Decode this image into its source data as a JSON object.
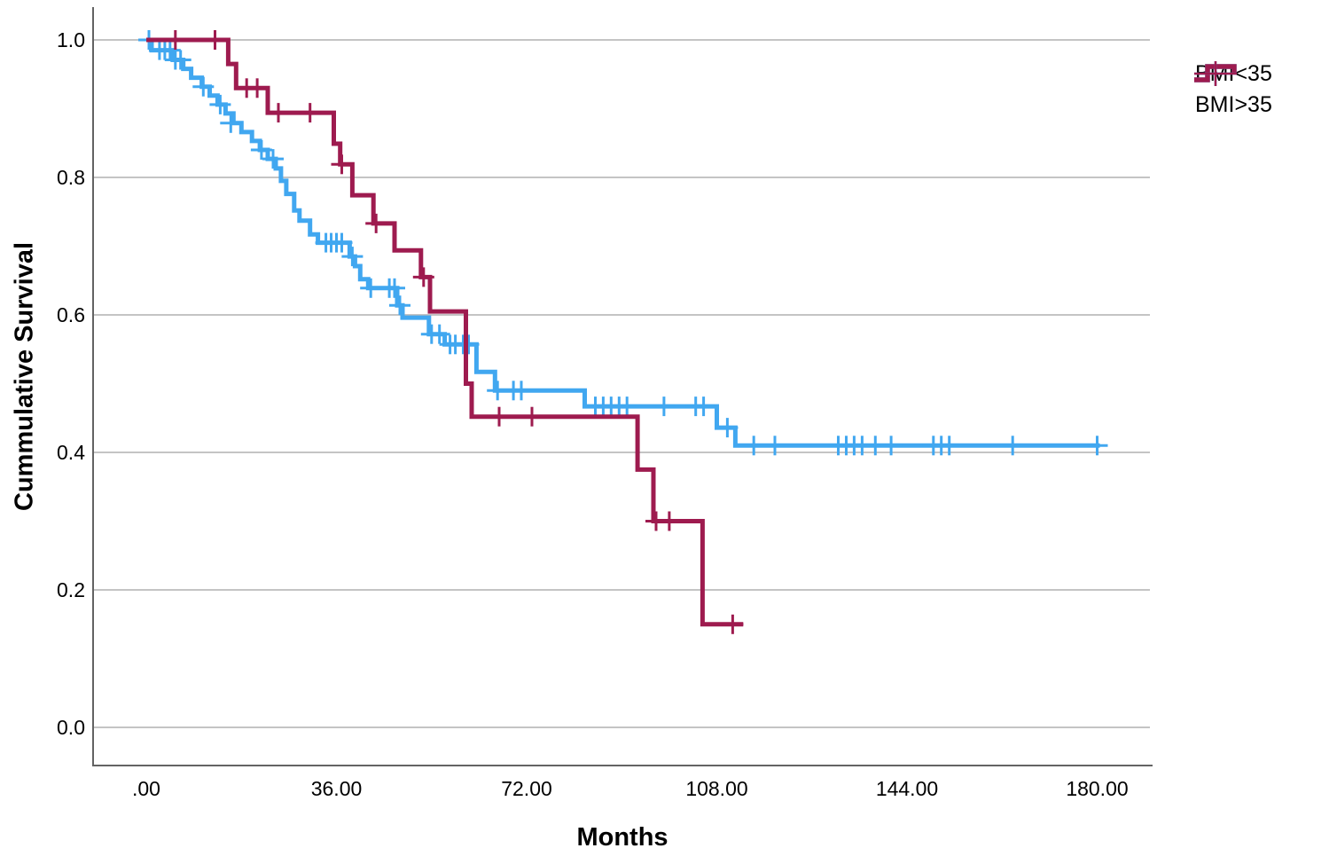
{
  "figure": {
    "background": "#ffffff",
    "plot": {
      "grid_color": "#b1b1b1",
      "axis_color": "#636363",
      "text_color": "#000000",
      "tick_font_size": 23
    }
  },
  "legend": {
    "items": [
      {
        "type": "line",
        "label": "BMI<35",
        "color": "#41a7f0"
      },
      {
        "type": "line",
        "label": "BMI>35",
        "color": "#9e1b4f"
      },
      {
        "type": "censor",
        "label": "",
        "color": "#41a7f0"
      },
      {
        "type": "censor",
        "label": "",
        "color": "#9e1b4f"
      }
    ]
  },
  "chart_data": {
    "type": "line",
    "subtype": "kaplan_meier_step",
    "title": "",
    "xlabel": "Months",
    "ylabel": "Cummulative Survival",
    "xlim": [
      -10,
      190
    ],
    "ylim": [
      -0.055,
      1.05
    ],
    "x_ticks": [
      0,
      36,
      72,
      108,
      144,
      180
    ],
    "x_tick_labels": [
      ".00",
      "36.00",
      "72.00",
      "108.00",
      "144.00",
      "180.00"
    ],
    "y_ticks": [
      1.0,
      0.8,
      0.6,
      0.4,
      0.2,
      0.0
    ],
    "y_tick_labels": [
      "1.0",
      "0.8",
      "0.6",
      "0.4",
      "0.2",
      "0.0"
    ],
    "grid": "horizontal",
    "legend_position": "top-right",
    "series": [
      {
        "name": "BMI<35",
        "color": "#41a7f0",
        "steps": [
          [
            0,
            1.0
          ],
          [
            1,
            0.985
          ],
          [
            5,
            0.971
          ],
          [
            7,
            0.958
          ],
          [
            8.5,
            0.945
          ],
          [
            10.5,
            0.932
          ],
          [
            12,
            0.919
          ],
          [
            13.5,
            0.906
          ],
          [
            15,
            0.893
          ],
          [
            16.5,
            0.879
          ],
          [
            18,
            0.866
          ],
          [
            20,
            0.853
          ],
          [
            21.5,
            0.84
          ],
          [
            23,
            0.827
          ],
          [
            24.5,
            0.813
          ],
          [
            25.5,
            0.795
          ],
          [
            26.5,
            0.776
          ],
          [
            28,
            0.752
          ],
          [
            29,
            0.737
          ],
          [
            31,
            0.717
          ],
          [
            32.5,
            0.705
          ],
          [
            38.5,
            0.685
          ],
          [
            39.5,
            0.671
          ],
          [
            40.5,
            0.652
          ],
          [
            42,
            0.639
          ],
          [
            47.5,
            0.614
          ],
          [
            48.5,
            0.596
          ],
          [
            53.5,
            0.572
          ],
          [
            56.5,
            0.557
          ],
          [
            62.5,
            0.517
          ],
          [
            66,
            0.49
          ],
          [
            83,
            0.467
          ],
          [
            108,
            0.436
          ],
          [
            111.5,
            0.41
          ],
          [
            180.5,
            0.41
          ]
        ],
        "censors": [
          [
            0.5,
            1.0
          ],
          [
            2.5,
            0.985
          ],
          [
            3.5,
            0.985
          ],
          [
            4.5,
            0.985
          ],
          [
            5.5,
            0.971
          ],
          [
            6.5,
            0.971
          ],
          [
            10.8,
            0.932
          ],
          [
            14,
            0.906
          ],
          [
            16,
            0.879
          ],
          [
            21.8,
            0.84
          ],
          [
            24,
            0.827
          ],
          [
            34,
            0.705
          ],
          [
            35,
            0.705
          ],
          [
            36,
            0.705
          ],
          [
            37,
            0.705
          ],
          [
            39,
            0.685
          ],
          [
            42.5,
            0.639
          ],
          [
            46,
            0.639
          ],
          [
            47,
            0.639
          ],
          [
            48,
            0.614
          ],
          [
            54,
            0.572
          ],
          [
            55.5,
            0.572
          ],
          [
            57.5,
            0.557
          ],
          [
            58.5,
            0.557
          ],
          [
            60,
            0.557
          ],
          [
            61,
            0.557
          ],
          [
            66.5,
            0.49
          ],
          [
            69.5,
            0.49
          ],
          [
            71,
            0.49
          ],
          [
            85,
            0.467
          ],
          [
            86.5,
            0.467
          ],
          [
            88,
            0.467
          ],
          [
            89.5,
            0.467
          ],
          [
            91,
            0.467
          ],
          [
            98,
            0.467
          ],
          [
            104,
            0.467
          ],
          [
            105.5,
            0.467
          ],
          [
            110,
            0.436
          ],
          [
            115,
            0.41
          ],
          [
            119,
            0.41
          ],
          [
            131,
            0.41
          ],
          [
            132.5,
            0.41
          ],
          [
            134,
            0.41
          ],
          [
            135.5,
            0.41
          ],
          [
            138,
            0.41
          ],
          [
            141,
            0.41
          ],
          [
            149,
            0.41
          ],
          [
            150.5,
            0.41
          ],
          [
            152,
            0.41
          ],
          [
            164,
            0.41
          ],
          [
            180,
            0.41
          ]
        ]
      },
      {
        "name": "BMI>35",
        "color": "#9e1b4f",
        "steps": [
          [
            0,
            1.0
          ],
          [
            15.5,
            0.965
          ],
          [
            17,
            0.93
          ],
          [
            23,
            0.894
          ],
          [
            35.5,
            0.849
          ],
          [
            36.7,
            0.819
          ],
          [
            39,
            0.774
          ],
          [
            43,
            0.733
          ],
          [
            47,
            0.694
          ],
          [
            52,
            0.655
          ],
          [
            53.7,
            0.605
          ],
          [
            60.5,
            0.5
          ],
          [
            61.6,
            0.452
          ],
          [
            93,
            0.375
          ],
          [
            96,
            0.3
          ],
          [
            105.3,
            0.15
          ],
          [
            113,
            0.15
          ]
        ],
        "censors": [
          [
            5.5,
            1.0
          ],
          [
            13,
            1.0
          ],
          [
            19,
            0.93
          ],
          [
            21,
            0.93
          ],
          [
            25,
            0.894
          ],
          [
            31,
            0.894
          ],
          [
            37,
            0.819
          ],
          [
            43.5,
            0.733
          ],
          [
            52.5,
            0.655
          ],
          [
            66.8,
            0.452
          ],
          [
            73,
            0.452
          ],
          [
            96.5,
            0.3
          ],
          [
            99,
            0.3
          ],
          [
            111,
            0.15
          ]
        ]
      }
    ]
  }
}
